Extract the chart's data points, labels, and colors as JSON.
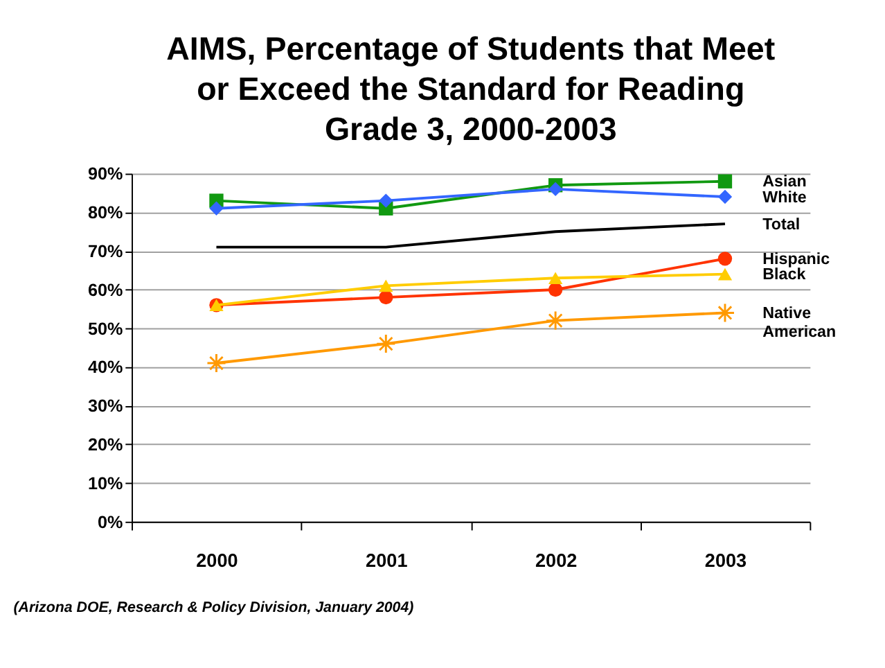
{
  "chart_data": {
    "type": "line",
    "title": "AIMS, Percentage of Students that Meet or Exceed the Standard for Reading Grade 3, 2000-2003",
    "categories": [
      "2000",
      "2001",
      "2002",
      "2003"
    ],
    "series": [
      {
        "name": "Asian",
        "color": "#119911",
        "marker": "square",
        "values": [
          83,
          81,
          87,
          88
        ]
      },
      {
        "name": "White",
        "color": "#3366ff",
        "marker": "diamond",
        "values": [
          81,
          83,
          86,
          84
        ]
      },
      {
        "name": "Total",
        "color": "#000000",
        "marker": "none",
        "values": [
          71,
          71,
          75,
          77
        ]
      },
      {
        "name": "Hispanic",
        "color": "#ff3300",
        "marker": "circle",
        "values": [
          56,
          58,
          60,
          68
        ]
      },
      {
        "name": "Black",
        "color": "#ffcc00",
        "marker": "triangle",
        "values": [
          56,
          61,
          63,
          64
        ]
      },
      {
        "name": "Native American",
        "color": "#ff9900",
        "marker": "cross",
        "values": [
          41,
          46,
          52,
          54
        ]
      }
    ],
    "ylim": [
      0,
      90
    ],
    "yticks": [
      {
        "value": 0,
        "label": "0%"
      },
      {
        "value": 10,
        "label": "10%"
      },
      {
        "value": 20,
        "label": "20%"
      },
      {
        "value": 30,
        "label": "30%"
      },
      {
        "value": 40,
        "label": "40%"
      },
      {
        "value": 50,
        "label": "50%"
      },
      {
        "value": 60,
        "label": "60%"
      },
      {
        "value": 70,
        "label": "70%"
      },
      {
        "value": 80,
        "label": "80%"
      },
      {
        "value": 90,
        "label": "90%"
      }
    ],
    "grid": "y",
    "annotations": [
      "(Arizona DOE, Research & Policy Division, January 2004)"
    ]
  }
}
